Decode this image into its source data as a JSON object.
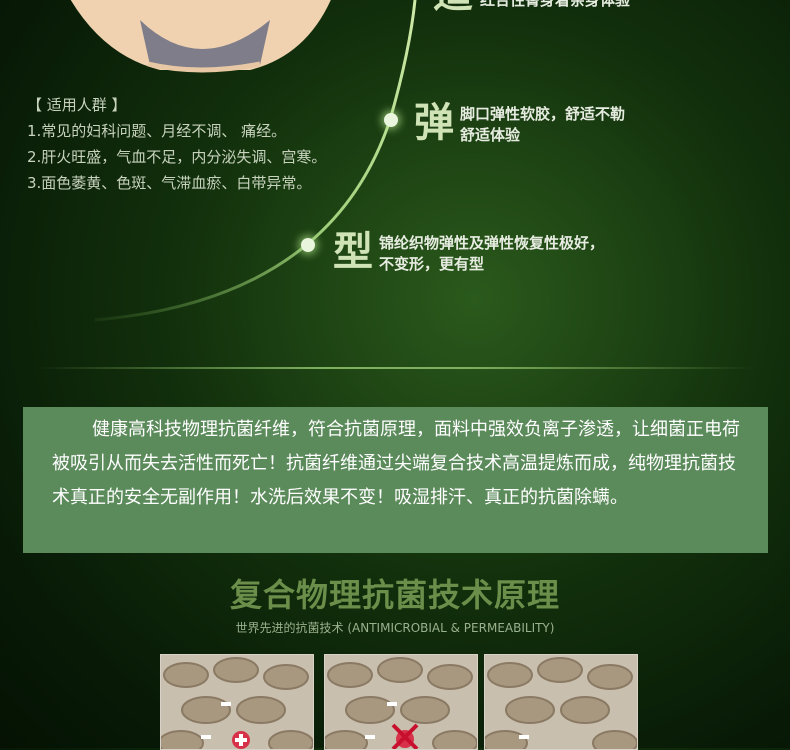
{
  "suitable": {
    "heading": "【 适用人群 】",
    "lines": [
      "1.常见的妇科问题、月经不调、 痛经。",
      "2.肝火旺盛，气血不足，内分泌失调、宫寒。",
      "3.面色萎黄、色斑、气滞血瘀、白带异常。"
    ]
  },
  "features": [
    {
      "char": "适",
      "text1": "红合性臀身着亲身体验",
      "text2": ""
    },
    {
      "char": "弹",
      "text1": "脚口弹性软胶，舒适不勒",
      "text2": "舒适体验"
    },
    {
      "char": "型",
      "text1": "锦纶织物弹性及弹性恢复性极好，",
      "text2": "不变形，更有型"
    }
  ],
  "description": "健康高科技物理抗菌纤维，符合抗菌原理，面料中强效负离子渗透，让细菌正电荷被吸引从而失去活性而死亡！抗菌纤维通过尖端复合技术高温提炼而成，纯物理抗菌技术真正的安全无副作用！水洗后效果不变！吸湿排汗、真正的抗菌除螨。",
  "section": {
    "title": "复合物理抗菌技术原理",
    "subtitle": "世界先进的抗菌技术 (ANTIMICROBIAL & PERMEABILITY)"
  },
  "icons": [
    "underwear-image",
    "fiber-structure-image",
    "bacteria-icon"
  ],
  "colors": {
    "accent": "#5b8a5b",
    "title": "#6b8e4a",
    "background": "#12300c"
  }
}
